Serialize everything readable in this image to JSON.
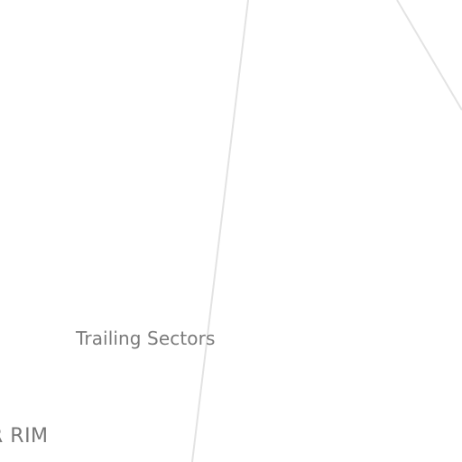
{
  "map": {
    "sector_label": "Trailing Sectors",
    "rim_label": "R RIM"
  }
}
